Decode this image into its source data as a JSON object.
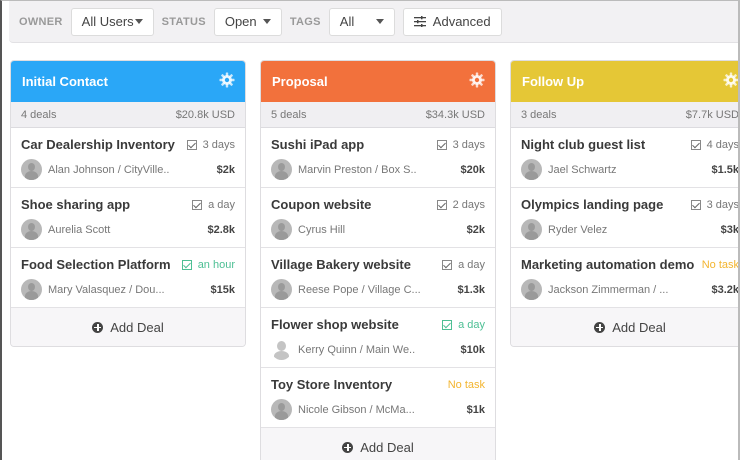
{
  "filters": {
    "owner_label": "OWNER",
    "owner_value": "All Users",
    "status_label": "STATUS",
    "status_value": "Open",
    "tags_label": "TAGS",
    "tags_value": "All",
    "advanced_label": "Advanced"
  },
  "colors": {
    "initial_contact": "#2aa7f7",
    "proposal": "#f2713c",
    "follow_up": "#e5c736",
    "task_due_soon": "#4dbf94",
    "no_task": "#f3b530"
  },
  "columns": [
    {
      "title": "Initial Contact",
      "deal_count": "4 deals",
      "total": "$20.8k USD",
      "add_label": "Add Deal",
      "deals": [
        {
          "title": "Car Dealership Inventory",
          "task": "3 days",
          "task_state": "normal",
          "contact": "Alan Johnson / CityVille..",
          "value": "$2k"
        },
        {
          "title": "Shoe sharing app",
          "task": "a day",
          "task_state": "normal",
          "contact": "Aurelia Scott",
          "value": "$2.8k"
        },
        {
          "title": "Food Selection Platform",
          "task": "an hour",
          "task_state": "green",
          "contact": "Mary Valasquez / Dou...",
          "value": "$15k"
        }
      ]
    },
    {
      "title": "Proposal",
      "deal_count": "5 deals",
      "total": "$34.3k USD",
      "add_label": "Add Deal",
      "deals": [
        {
          "title": "Sushi iPad app",
          "task": "3 days",
          "task_state": "normal",
          "contact": "Marvin Preston / Box S..",
          "value": "$20k"
        },
        {
          "title": "Coupon website",
          "task": "2 days",
          "task_state": "normal",
          "contact": "Cyrus Hill",
          "value": "$2k"
        },
        {
          "title": "Village Bakery website",
          "task": "a day",
          "task_state": "normal",
          "contact": "Reese Pope / Village C...",
          "value": "$1.3k"
        },
        {
          "title": "Flower shop website",
          "task": "a day",
          "task_state": "green",
          "contact": "Kerry Quinn / Main We..",
          "value": "$10k"
        },
        {
          "title": "Toy Store Inventory",
          "task": "No task",
          "task_state": "none",
          "contact": "Nicole Gibson / McMa...",
          "value": "$1k"
        }
      ]
    },
    {
      "title": "Follow Up",
      "deal_count": "3 deals",
      "total": "$7.7k USD",
      "add_label": "Add Deal",
      "deals": [
        {
          "title": "Night club guest list",
          "task": "4 days",
          "task_state": "normal",
          "contact": "Jael Schwartz",
          "value": "$1.5k"
        },
        {
          "title": "Olympics landing page",
          "task": "3 days",
          "task_state": "normal",
          "contact": "Ryder Velez",
          "value": "$3k"
        },
        {
          "title": "Marketing automation demo",
          "task": "No task",
          "task_state": "none",
          "contact": "Jackson Zimmerman / ...",
          "value": "$3.2k"
        }
      ]
    }
  ]
}
